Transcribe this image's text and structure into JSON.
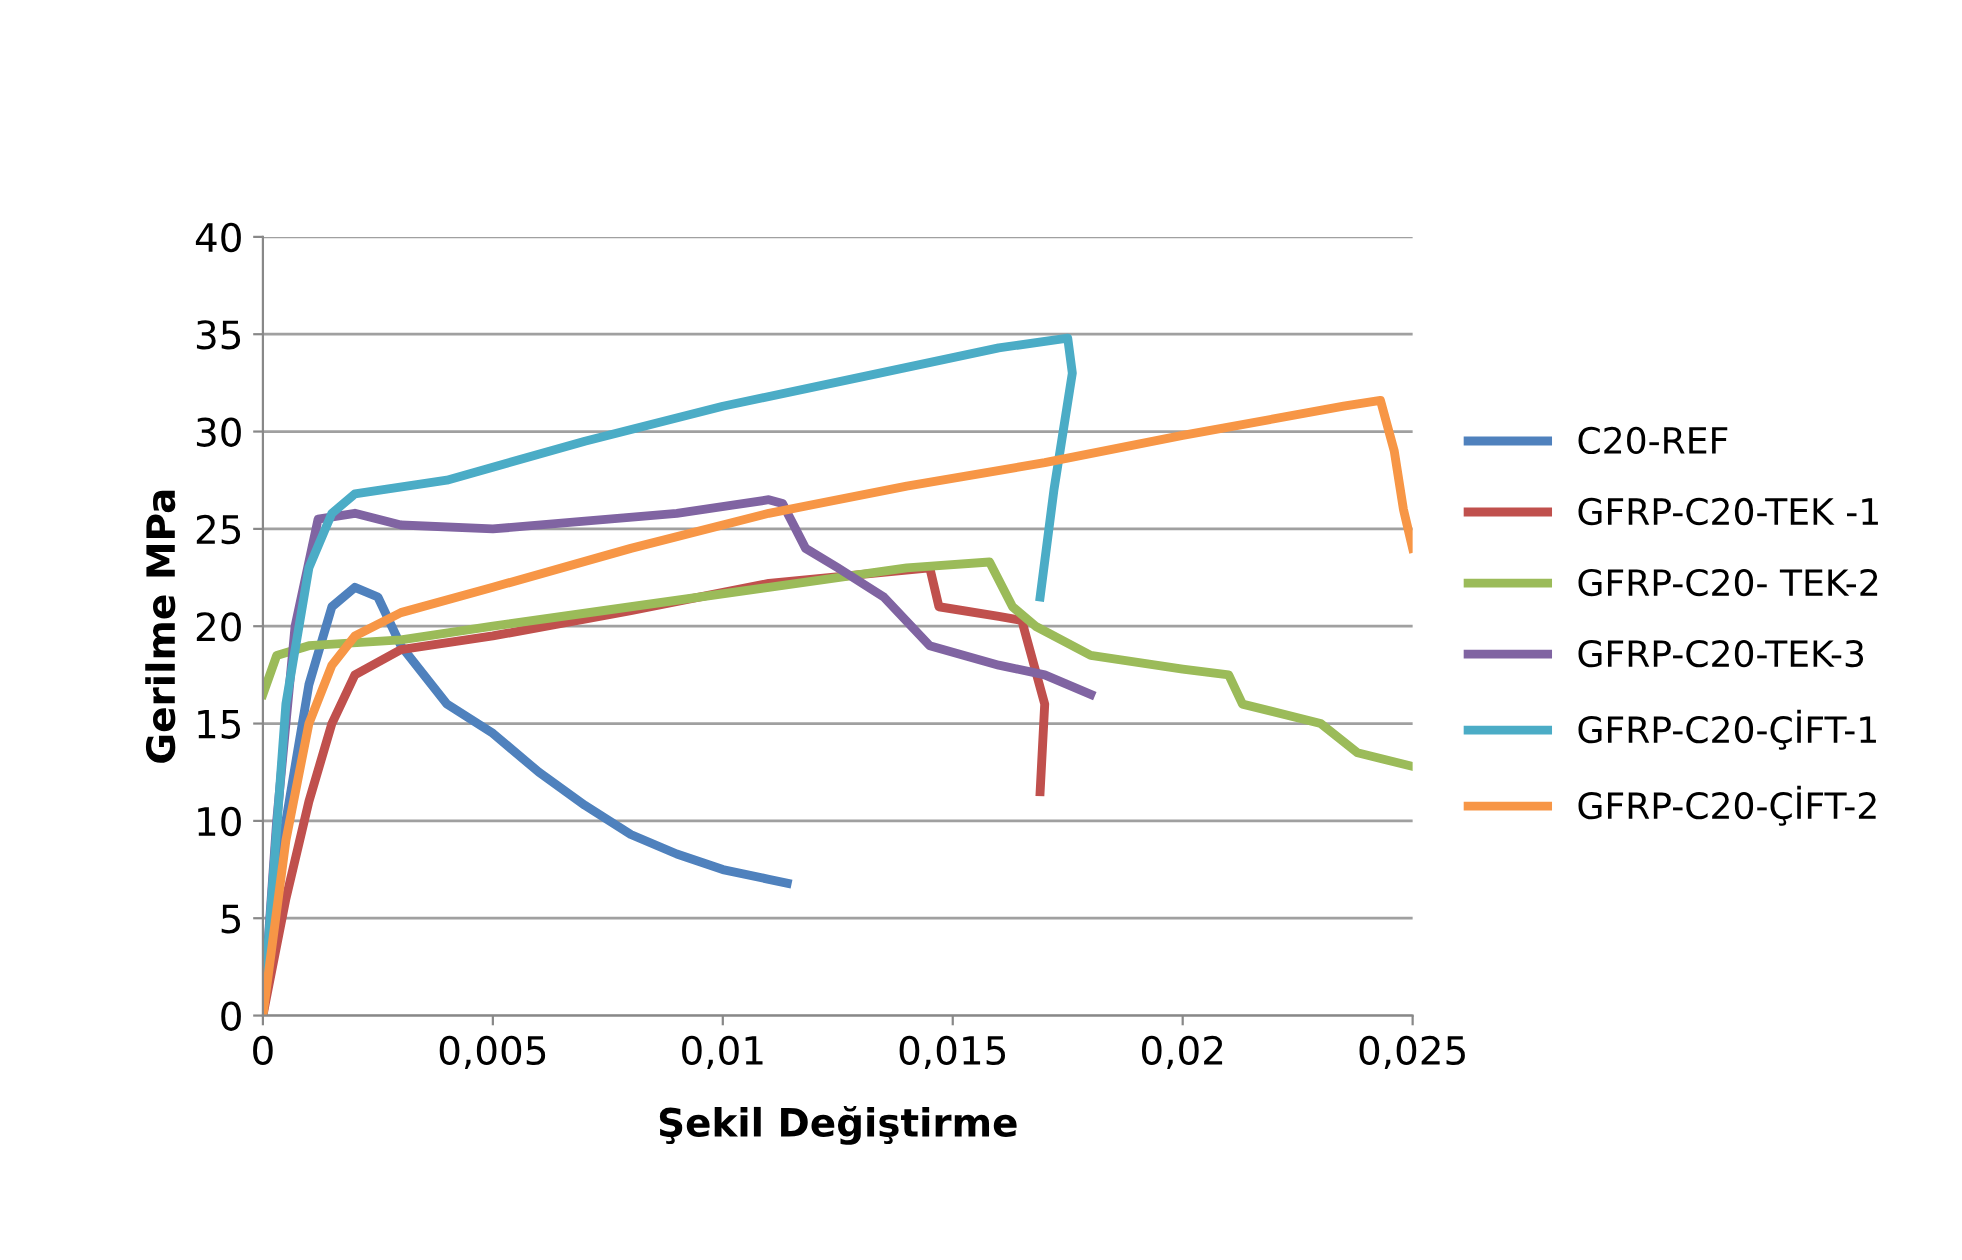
{
  "chart_data": {
    "type": "line",
    "xlabel": "Şekil Değiştirme",
    "ylabel": "Gerilme MPa",
    "xlim": [
      0,
      0.025
    ],
    "xticks": [
      {
        "value": 0,
        "label": "0"
      },
      {
        "value": 0.005,
        "label": "0,005"
      },
      {
        "value": 0.01,
        "label": "0,01"
      },
      {
        "value": 0.015,
        "label": "0,015"
      },
      {
        "value": 0.02,
        "label": "0,02"
      },
      {
        "value": 0.025,
        "label": "0,025"
      }
    ],
    "ylim": [
      0,
      40
    ],
    "yticks": [
      0,
      5,
      10,
      15,
      20,
      25,
      30,
      35,
      40
    ],
    "grid": "y",
    "legend": "right",
    "marker": "none",
    "line_style": "solid",
    "series": [
      {
        "name": "C20-REF",
        "color": "#4f81bd",
        "x": [
          0,
          0.0005,
          0.001,
          0.0015,
          0.002,
          0.0025,
          0.003,
          0.004,
          0.005,
          0.006,
          0.007,
          0.008,
          0.009,
          0.01,
          0.011,
          0.0114
        ],
        "values": [
          0,
          10,
          17,
          21,
          22,
          21.5,
          19,
          16,
          14.5,
          12.5,
          10.8,
          9.3,
          8.3,
          7.5,
          7,
          6.8
        ]
      },
      {
        "name": "GFRP-C20-TEK -1",
        "color": "#c0504d",
        "x": [
          0,
          0.0005,
          0.001,
          0.0015,
          0.002,
          0.003,
          0.005,
          0.008,
          0.011,
          0.0145,
          0.0147,
          0.016,
          0.0165,
          0.017,
          0.0169
        ],
        "values": [
          0,
          6,
          11,
          15,
          17.5,
          18.8,
          19.5,
          20.8,
          22.2,
          23,
          21,
          20.5,
          20.3,
          16,
          11.5
        ]
      },
      {
        "name": "GFRP-C20- TEK-2",
        "color": "#9bbb59",
        "x": [
          0,
          0.0003,
          0.001,
          0.003,
          0.005,
          0.008,
          0.011,
          0.014,
          0.0158,
          0.0163,
          0.0168,
          0.018,
          0.02,
          0.021,
          0.0213,
          0.023,
          0.0238,
          0.025
        ],
        "values": [
          16.5,
          18.5,
          19,
          19.3,
          20,
          21,
          22,
          23,
          23.3,
          21,
          20,
          18.5,
          17.8,
          17.5,
          16,
          15,
          13.5,
          12.8
        ]
      },
      {
        "name": "GFRP-C20-TEK-3",
        "color": "#8064a2",
        "x": [
          0,
          0.0003,
          0.0007,
          0.0012,
          0.002,
          0.003,
          0.005,
          0.007,
          0.009,
          0.011,
          0.0113,
          0.0118,
          0.0125,
          0.0135,
          0.0145,
          0.016,
          0.017,
          0.018
        ],
        "values": [
          0,
          10,
          20,
          25.5,
          25.8,
          25.2,
          25,
          25.4,
          25.8,
          26.5,
          26.3,
          24,
          23,
          21.5,
          19,
          18,
          17.5,
          16.5
        ]
      },
      {
        "name": "GFRP-C20-ÇİFT-1",
        "color": "#4bacc6",
        "x": [
          0,
          0.0005,
          0.001,
          0.0015,
          0.002,
          0.004,
          0.007,
          0.01,
          0.013,
          0.016,
          0.0175,
          0.0176,
          0.0172,
          0.0169
        ],
        "values": [
          0,
          16,
          23,
          25.8,
          26.8,
          27.5,
          29.5,
          31.3,
          32.8,
          34.3,
          34.8,
          33,
          27,
          21.5
        ]
      },
      {
        "name": "GFRP-C20-ÇİFT-2",
        "color": "#f79646",
        "x": [
          0,
          0.0005,
          0.001,
          0.0015,
          0.002,
          0.003,
          0.005,
          0.008,
          0.011,
          0.014,
          0.017,
          0.02,
          0.0235,
          0.0243,
          0.0246,
          0.0248,
          0.0249,
          0.025
        ],
        "values": [
          0,
          9,
          15,
          18,
          19.5,
          20.7,
          22,
          24,
          25.8,
          27.2,
          28.4,
          29.8,
          31.3,
          31.6,
          29,
          26,
          25,
          24
        ]
      }
    ]
  }
}
